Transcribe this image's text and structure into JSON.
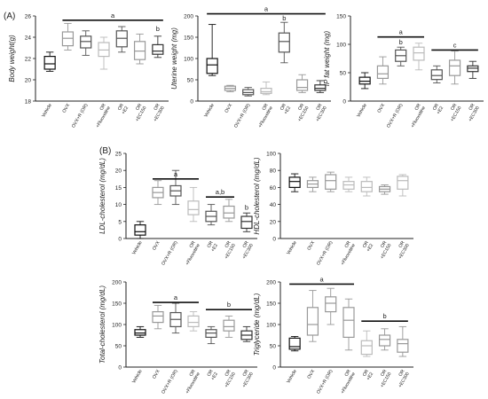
{
  "panel_labels": [
    "(A)",
    "(B)"
  ],
  "chart_data": [
    {
      "id": "body-weight",
      "type": "box",
      "ylabel": "Body weight(g)",
      "ylim": [
        18,
        26
      ],
      "ticks": [
        18,
        20,
        22,
        24,
        26
      ],
      "categories": [
        "Vehicle",
        "OVX",
        "OVX+R (OR)",
        "OR\n+Fluoxetine",
        "OR\n+E2",
        "OR\n+EC150",
        "OR\n+EC300"
      ],
      "boxes": [
        {
          "min": 20.8,
          "q1": 21.0,
          "median": 21.5,
          "q3": 22.2,
          "max": 22.6,
          "color": "#111111"
        },
        {
          "min": 22.8,
          "q1": 23.2,
          "median": 23.9,
          "q3": 24.5,
          "max": 25.3,
          "color": "#999999"
        },
        {
          "min": 22.3,
          "q1": 23.0,
          "median": 23.6,
          "q3": 24.1,
          "max": 24.6,
          "color": "#555555"
        },
        {
          "min": 21.0,
          "q1": 22.2,
          "median": 22.8,
          "q3": 23.5,
          "max": 24.0,
          "color": "#bbbbbb"
        },
        {
          "min": 22.6,
          "q1": 23.1,
          "median": 23.9,
          "q3": 24.6,
          "max": 25.0,
          "color": "#555555"
        },
        {
          "min": 21.5,
          "q1": 21.9,
          "median": 22.7,
          "q3": 23.6,
          "max": 24.3,
          "color": "#999999"
        },
        {
          "min": 22.1,
          "q1": 22.4,
          "median": 22.7,
          "q3": 23.3,
          "max": 24.1,
          "color": "#333333"
        }
      ],
      "annotations": [
        {
          "text": "a",
          "from": 1,
          "to": 6,
          "y": 25.6,
          "bar": true
        },
        {
          "text": "b",
          "at": 6,
          "y": 24.6,
          "bar": false
        }
      ]
    },
    {
      "id": "uterine-weight",
      "type": "box",
      "ylabel": "Uterine weight (mg)",
      "ylim": [
        0,
        200
      ],
      "ticks": [
        0,
        50,
        100,
        150,
        200
      ],
      "categories": [
        "Vehicle",
        "OVX",
        "OVX+R (OR)",
        "OR\n+Fluoxetine",
        "OR\n+E2",
        "OR\n+EC150",
        "OR\n+EC300"
      ],
      "boxes": [
        {
          "min": 60,
          "q1": 65,
          "median": 85,
          "q3": 100,
          "max": 180,
          "color": "#111111"
        },
        {
          "min": 22,
          "q1": 25,
          "median": 30,
          "q3": 35,
          "max": 37,
          "color": "#999999"
        },
        {
          "min": 12,
          "q1": 15,
          "median": 20,
          "q3": 27,
          "max": 32,
          "color": "#555555"
        },
        {
          "min": 15,
          "q1": 18,
          "median": 22,
          "q3": 30,
          "max": 45,
          "color": "#bbbbbb"
        },
        {
          "min": 90,
          "q1": 115,
          "median": 140,
          "q3": 160,
          "max": 185,
          "color": "#555555"
        },
        {
          "min": 20,
          "q1": 25,
          "median": 32,
          "q3": 50,
          "max": 62,
          "color": "#999999"
        },
        {
          "min": 20,
          "q1": 25,
          "median": 30,
          "q3": 38,
          "max": 48,
          "color": "#333333"
        }
      ],
      "annotations": [
        {
          "text": "a",
          "from": 0,
          "to": 6,
          "y": 205,
          "bar": true
        },
        {
          "text": "b",
          "at": 4,
          "y": 190,
          "bar": false
        }
      ]
    },
    {
      "id": "ip-fat-weight",
      "type": "box",
      "ylabel": "IP fat weight (mg)",
      "ylim": [
        0,
        150
      ],
      "ticks": [
        0,
        50,
        100,
        150
      ],
      "categories": [
        "Vehicle",
        "OVX",
        "OVX+R (OR)",
        "OR\n+Fluoxetine",
        "OR\n+E2",
        "OR\n+EC150",
        "OR\n+EC300"
      ],
      "boxes": [
        {
          "min": 22,
          "q1": 30,
          "median": 35,
          "q3": 42,
          "max": 50,
          "color": "#111111"
        },
        {
          "min": 30,
          "q1": 40,
          "median": 48,
          "q3": 62,
          "max": 78,
          "color": "#999999"
        },
        {
          "min": 62,
          "q1": 70,
          "median": 80,
          "q3": 90,
          "max": 95,
          "color": "#555555"
        },
        {
          "min": 55,
          "q1": 72,
          "median": 85,
          "q3": 95,
          "max": 102,
          "color": "#bbbbbb"
        },
        {
          "min": 32,
          "q1": 38,
          "median": 45,
          "q3": 55,
          "max": 62,
          "color": "#555555"
        },
        {
          "min": 30,
          "q1": 45,
          "median": 62,
          "q3": 72,
          "max": 88,
          "color": "#999999"
        },
        {
          "min": 40,
          "q1": 52,
          "median": 58,
          "q3": 62,
          "max": 70,
          "color": "#333333"
        }
      ],
      "annotations": [
        {
          "text": "a",
          "from": 1,
          "to": 3,
          "y": 113,
          "bar": true
        },
        {
          "text": "b",
          "at": 2,
          "y": 100,
          "bar": false
        },
        {
          "text": "c",
          "from": 4,
          "to": 6,
          "y": 90,
          "bar": true
        }
      ]
    },
    {
      "id": "ldl-cholesterol",
      "type": "box",
      "ylabel": "LDL-cholesterol (mg/dL)",
      "ylim": [
        0,
        25
      ],
      "ticks": [
        0,
        5,
        10,
        15,
        20,
        25
      ],
      "categories": [
        "Vehicle",
        "OVX",
        "OVX+R (OR)",
        "OR\n+Fluoxetine",
        "OR\n+E2",
        "OR\n+EC150",
        "OR\n+EC300"
      ],
      "boxes": [
        {
          "min": 0,
          "q1": 1,
          "median": 2,
          "q3": 4,
          "max": 5,
          "color": "#111111"
        },
        {
          "min": 10,
          "q1": 12,
          "median": 13.5,
          "q3": 15,
          "max": 17,
          "color": "#999999"
        },
        {
          "min": 10,
          "q1": 12.5,
          "median": 14,
          "q3": 15.5,
          "max": 20,
          "color": "#555555"
        },
        {
          "min": 5,
          "q1": 7,
          "median": 8.5,
          "q3": 11,
          "max": 15,
          "color": "#bbbbbb"
        },
        {
          "min": 4,
          "q1": 5,
          "median": 6.5,
          "q3": 8,
          "max": 10,
          "color": "#555555"
        },
        {
          "min": 5,
          "q1": 6,
          "median": 7.5,
          "q3": 9.5,
          "max": 11.5,
          "color": "#999999"
        },
        {
          "min": 2,
          "q1": 3,
          "median": 5,
          "q3": 6.5,
          "max": 7.5,
          "color": "#333333"
        }
      ],
      "annotations": [
        {
          "text": "a",
          "from": 1,
          "to": 3,
          "y": 17.5,
          "bar": true
        },
        {
          "text": "a,b",
          "from": 4,
          "to": 5,
          "y": 12.2,
          "bar": true
        },
        {
          "text": "b",
          "at": 6,
          "y": 8.5,
          "bar": false
        }
      ]
    },
    {
      "id": "hdl-cholesterol",
      "type": "box",
      "ylabel": "HDL-cholesterol (mg/dL)",
      "ylim": [
        0,
        100
      ],
      "ticks": [
        0,
        20,
        40,
        60,
        80,
        100
      ],
      "categories": [
        "Vehicle",
        "OVX",
        "OVX+R (OR)",
        "OR\n+Fluoxetine",
        "OR\n+E2",
        "OR\n+EC150",
        "OR\n+EC300"
      ],
      "boxes": [
        {
          "min": 55,
          "q1": 60,
          "median": 67,
          "q3": 72,
          "max": 76,
          "color": "#111111"
        },
        {
          "min": 55,
          "q1": 60,
          "median": 64,
          "q3": 68,
          "max": 72,
          "color": "#999999"
        },
        {
          "min": 55,
          "q1": 58,
          "median": 68,
          "q3": 75,
          "max": 78,
          "color": "#999999"
        },
        {
          "min": 55,
          "q1": 58,
          "median": 63,
          "q3": 67,
          "max": 72,
          "color": "#bbbbbb"
        },
        {
          "min": 50,
          "q1": 55,
          "median": 60,
          "q3": 67,
          "max": 72,
          "color": "#bbbbbb"
        },
        {
          "min": 52,
          "q1": 55,
          "median": 58,
          "q3": 61,
          "max": 63,
          "color": "#999999"
        },
        {
          "min": 50,
          "q1": 58,
          "median": 68,
          "q3": 73,
          "max": 75,
          "color": "#bbbbbb"
        }
      ],
      "annotations": []
    },
    {
      "id": "total-cholesterol",
      "type": "box",
      "ylabel": "Total-cholesterol (mg/dL)",
      "ylim": [
        0,
        200
      ],
      "ticks": [
        0,
        50,
        100,
        150,
        200
      ],
      "categories": [
        "Vehicle",
        "OVX",
        "OVX+R (OR)",
        "OR\n+Fluoxetine",
        "OR\n+E2",
        "OR\n+EC150",
        "OR\n+EC300"
      ],
      "boxes": [
        {
          "min": 70,
          "q1": 75,
          "median": 80,
          "q3": 88,
          "max": 95,
          "color": "#111111"
        },
        {
          "min": 90,
          "q1": 105,
          "median": 120,
          "q3": 130,
          "max": 145,
          "color": "#999999"
        },
        {
          "min": 80,
          "q1": 95,
          "median": 112,
          "q3": 128,
          "max": 150,
          "color": "#555555"
        },
        {
          "min": 85,
          "q1": 95,
          "median": 105,
          "q3": 120,
          "max": 130,
          "color": "#bbbbbb"
        },
        {
          "min": 55,
          "q1": 70,
          "median": 80,
          "q3": 88,
          "max": 95,
          "color": "#555555"
        },
        {
          "min": 70,
          "q1": 85,
          "median": 95,
          "q3": 110,
          "max": 120,
          "color": "#999999"
        },
        {
          "min": 60,
          "q1": 65,
          "median": 75,
          "q3": 85,
          "max": 95,
          "color": "#333333"
        }
      ],
      "annotations": [
        {
          "text": "a",
          "from": 1,
          "to": 3,
          "y": 152,
          "bar": true
        },
        {
          "text": "b",
          "from": 4,
          "to": 6,
          "y": 135,
          "bar": true
        }
      ]
    },
    {
      "id": "triglyceride",
      "type": "box",
      "ylabel": "Triglyceride (mg/dL)",
      "ylim": [
        0,
        200
      ],
      "ticks": [
        0,
        50,
        100,
        150,
        200
      ],
      "categories": [
        "Vehicle",
        "OVX",
        "OVX+R (OR)",
        "OR\n+Fluoxetine",
        "OR\n+E2",
        "OR\n+EC150",
        "OR\n+EC300"
      ],
      "boxes": [
        {
          "min": 38,
          "q1": 42,
          "median": 48,
          "q3": 68,
          "max": 72,
          "color": "#111111"
        },
        {
          "min": 60,
          "q1": 75,
          "median": 100,
          "q3": 140,
          "max": 180,
          "color": "#999999"
        },
        {
          "min": 100,
          "q1": 130,
          "median": 150,
          "q3": 165,
          "max": 185,
          "color": "#999999"
        },
        {
          "min": 40,
          "q1": 70,
          "median": 110,
          "q3": 140,
          "max": 160,
          "color": "#999999"
        },
        {
          "min": 25,
          "q1": 30,
          "median": 50,
          "q3": 62,
          "max": 85,
          "color": "#bbbbbb"
        },
        {
          "min": 40,
          "q1": 50,
          "median": 65,
          "q3": 75,
          "max": 90,
          "color": "#999999"
        },
        {
          "min": 25,
          "q1": 35,
          "median": 55,
          "q3": 65,
          "max": 95,
          "color": "#999999"
        }
      ],
      "annotations": [
        {
          "text": "a",
          "from": 0,
          "to": 3,
          "y": 195,
          "bar": true
        },
        {
          "text": "b",
          "from": 4,
          "to": 6,
          "y": 108,
          "bar": true
        }
      ]
    }
  ]
}
